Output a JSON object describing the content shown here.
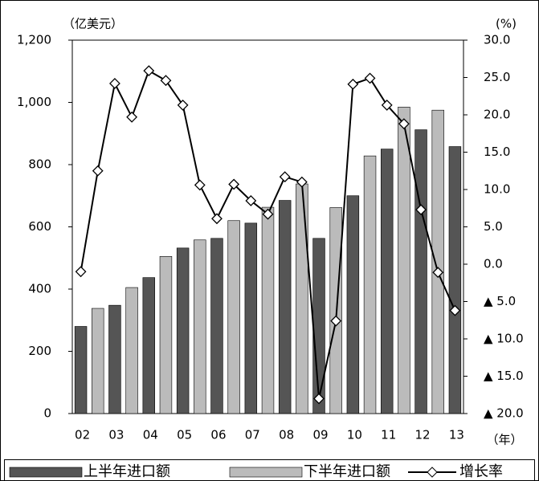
{
  "chart_data": {
    "type": "bar",
    "y_label": "（亿美元）",
    "y2_label": "(%)",
    "x_label": "（年）",
    "categories": [
      "02",
      null,
      "03",
      null,
      "04",
      null,
      "05",
      null,
      "06",
      null,
      "07",
      null,
      "08",
      null,
      "09",
      null,
      "10",
      null,
      "11",
      null,
      "12",
      null,
      "13"
    ],
    "series": [
      {
        "name": "上半年进口额",
        "color": "#555555",
        "values": [
          280,
          null,
          348,
          null,
          437,
          null,
          532,
          null,
          563,
          null,
          612,
          null,
          685,
          null,
          563,
          null,
          700,
          null,
          850,
          null,
          912,
          null,
          858
        ]
      },
      {
        "name": "下半年进口额",
        "color": "#bbbbbb",
        "values": [
          null,
          338,
          null,
          405,
          null,
          505,
          null,
          558,
          null,
          620,
          null,
          663,
          null,
          738,
          null,
          662,
          null,
          828,
          null,
          985,
          null,
          975,
          null
        ]
      },
      {
        "name": "增长率",
        "color": "#000000",
        "type": "line",
        "axis": "y2",
        "values": [
          -1,
          12.5,
          24.2,
          19.7,
          25.9,
          24.6,
          21.3,
          10.6,
          6.1,
          10.7,
          8.5,
          6.7,
          11.7,
          11.0,
          -18,
          -7.6,
          24.1,
          24.9,
          21.3,
          18.8,
          7.3,
          -1.1,
          -6.2
        ]
      }
    ],
    "ylim": [
      0,
      1200
    ],
    "yticks": [
      0,
      200,
      400,
      600,
      800,
      {
        "value": 1000,
        "label": "1,000"
      },
      {
        "value": 1200,
        "label": "1,200"
      }
    ],
    "y2lim": [
      -20,
      30
    ],
    "y2ticks": [
      {
        "value": -20,
        "label": "▲ 20.0"
      },
      {
        "value": -15,
        "label": "▲ 15.0"
      },
      {
        "value": -10,
        "label": "▲ 10.0"
      },
      {
        "value": -5,
        "label": "▲ 5.0"
      },
      {
        "value": 0,
        "label": "0.0"
      },
      {
        "value": 5,
        "label": "5.0"
      },
      {
        "value": 10,
        "label": "10.0"
      },
      {
        "value": 15,
        "label": "15.0"
      },
      {
        "value": 20,
        "label": "20.0"
      },
      {
        "value": 25,
        "label": "25.0"
      },
      {
        "value": 30,
        "label": "30.0"
      }
    ],
    "legend": "bottom"
  }
}
